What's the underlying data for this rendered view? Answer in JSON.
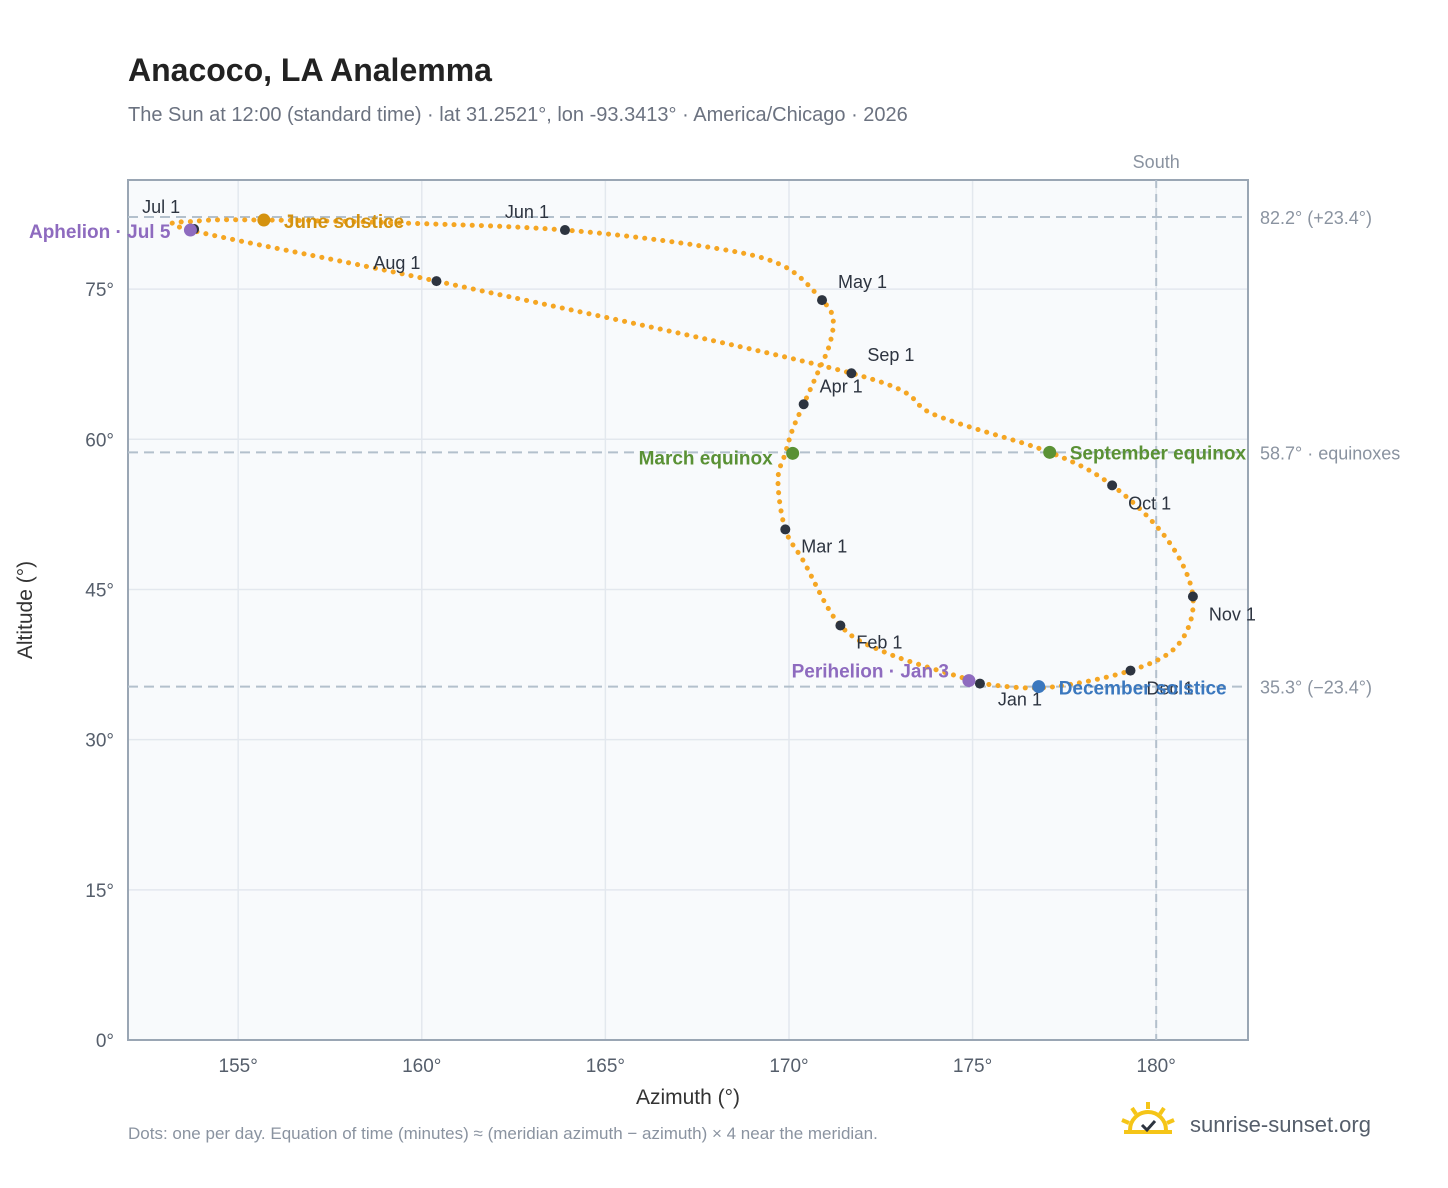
{
  "title": "Anacoco, LA Analemma",
  "subtitle": "The Sun at 12:00 (standard time) · lat 31.2521°, lon -93.3413° · America/Chicago · 2026",
  "footnote": "Dots: one per day. Equation of time (minutes) ≈ (meridian azimuth − azimuth) × 4 near the meridian.",
  "brand": "sunrise-sunset.org",
  "colors": {
    "curve": "#f5a623",
    "month_dot": "#2d3440",
    "june": "#d4920f",
    "equinox": "#5a9135",
    "december": "#3b78be",
    "apsis": "#8e6bbf",
    "plot_bg": "#f8fafc",
    "grid": "#e3e8ee",
    "frame": "#9aa6b4",
    "refline": "#b3c0cc"
  },
  "chart_data": {
    "type": "scatter",
    "xlabel": "Azimuth (°)",
    "ylabel": "Altitude (°)",
    "xlim": [
      152,
      182.5
    ],
    "ylim": [
      0,
      85.9
    ],
    "xticks": [
      155,
      160,
      165,
      170,
      175,
      180
    ],
    "xtick_labels": [
      "155°",
      "160°",
      "165°",
      "170°",
      "175°",
      "180°"
    ],
    "yticks": [
      0,
      15,
      30,
      45,
      60,
      75
    ],
    "ytick_labels": [
      "0°",
      "15°",
      "30°",
      "45°",
      "60°",
      "75°"
    ],
    "meridian": {
      "azimuth": 180,
      "label": "South"
    },
    "reference_lines": [
      {
        "altitude": 82.2,
        "label": "82.2° (+23.4°)"
      },
      {
        "altitude": 58.7,
        "label": "58.7° · equinoxes"
      },
      {
        "altitude": 35.3,
        "label": "35.3° (−23.4°)"
      }
    ],
    "path": [
      [
        175.2,
        35.6
      ],
      [
        177.0,
        35.2
      ],
      [
        179.3,
        36.9
      ],
      [
        180.6,
        39.5
      ],
      [
        181.0,
        44.3
      ],
      [
        180.3,
        50.0
      ],
      [
        178.8,
        55.4
      ],
      [
        177.1,
        58.7
      ],
      [
        174.0,
        62.4
      ],
      [
        171.7,
        66.6
      ],
      [
        160.4,
        75.8
      ],
      [
        153.7,
        80.9
      ],
      [
        153.9,
        81.8
      ],
      [
        155.7,
        81.9
      ],
      [
        159.5,
        81.6
      ],
      [
        163.9,
        80.9
      ],
      [
        167.8,
        79.2
      ],
      [
        169.8,
        77.4
      ],
      [
        170.9,
        73.9
      ],
      [
        171.2,
        72.0
      ],
      [
        171.1,
        69.4
      ],
      [
        170.8,
        66.8
      ],
      [
        170.4,
        63.5
      ],
      [
        170.1,
        61.0
      ],
      [
        169.9,
        58.6
      ],
      [
        169.7,
        55.9
      ],
      [
        169.9,
        51.0
      ],
      [
        170.4,
        47.8
      ],
      [
        171.4,
        41.4
      ],
      [
        172.7,
        38.6
      ],
      [
        174.8,
        36.1
      ],
      [
        175.2,
        35.6
      ]
    ],
    "months": [
      {
        "label": "Jan 1",
        "az": 175.2,
        "alt": 35.6
      },
      {
        "label": "Feb 1",
        "az": 171.4,
        "alt": 41.4
      },
      {
        "label": "Mar 1",
        "az": 169.9,
        "alt": 51.0
      },
      {
        "label": "Apr 1",
        "az": 170.4,
        "alt": 63.5
      },
      {
        "label": "May 1",
        "az": 170.9,
        "alt": 73.9
      },
      {
        "label": "Jun 1",
        "az": 163.9,
        "alt": 80.9
      },
      {
        "label": "Jul 1",
        "az": 153.8,
        "alt": 81.0
      },
      {
        "label": "Aug 1",
        "az": 160.4,
        "alt": 75.8
      },
      {
        "label": "Sep 1",
        "az": 171.7,
        "alt": 66.6
      },
      {
        "label": "Oct 1",
        "az": 178.8,
        "alt": 55.4
      },
      {
        "label": "Nov 1",
        "az": 181.0,
        "alt": 44.3
      },
      {
        "label": "Dec 1",
        "az": 179.3,
        "alt": 36.9
      }
    ],
    "events": [
      {
        "label": "June solstice",
        "az": 155.7,
        "alt": 81.9,
        "kind": "june"
      },
      {
        "label": "March equinox",
        "az": 170.1,
        "alt": 58.6,
        "kind": "equinox"
      },
      {
        "label": "September equinox",
        "az": 177.1,
        "alt": 58.7,
        "kind": "equinox"
      },
      {
        "label": "December solstice",
        "az": 176.8,
        "alt": 35.3,
        "kind": "december"
      },
      {
        "label": "Aphelion · Jul 5",
        "az": 153.7,
        "alt": 80.9,
        "kind": "apsis"
      },
      {
        "label": "Perihelion · Jan 3",
        "az": 174.9,
        "alt": 35.9,
        "kind": "apsis"
      }
    ]
  }
}
